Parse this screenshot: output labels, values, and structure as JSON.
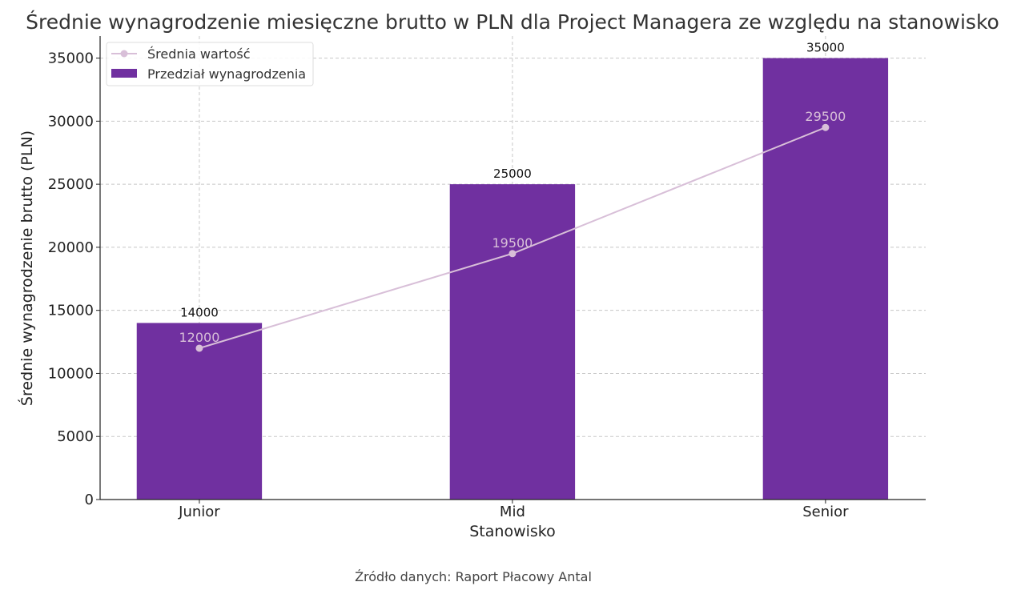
{
  "chart_data": {
    "type": "bar",
    "title": "Średnie wynagrodzenie miesięczne brutto w PLN dla Project Managera ze względu na stanowisko",
    "xlabel": "Stanowisko",
    "ylabel": "Średnie wynagrodzenie brutto (PLN)",
    "categories": [
      "Junior",
      "Mid",
      "Senior"
    ],
    "ylim": [
      0,
      36750
    ],
    "yticks": [
      0,
      5000,
      10000,
      15000,
      20000,
      25000,
      30000,
      35000
    ],
    "grid": true,
    "legend_position": "top-left",
    "series": [
      {
        "name": "Przedział wynagrodzenia",
        "type": "bar",
        "values": [
          14000,
          25000,
          35000
        ],
        "color": "#7030a0"
      },
      {
        "name": "Średnia wartość",
        "type": "line",
        "values": [
          12000,
          19500,
          29500
        ],
        "color": "#d8bfd8"
      }
    ],
    "source": "Źródło danych: Raport Płacowy Antal"
  }
}
